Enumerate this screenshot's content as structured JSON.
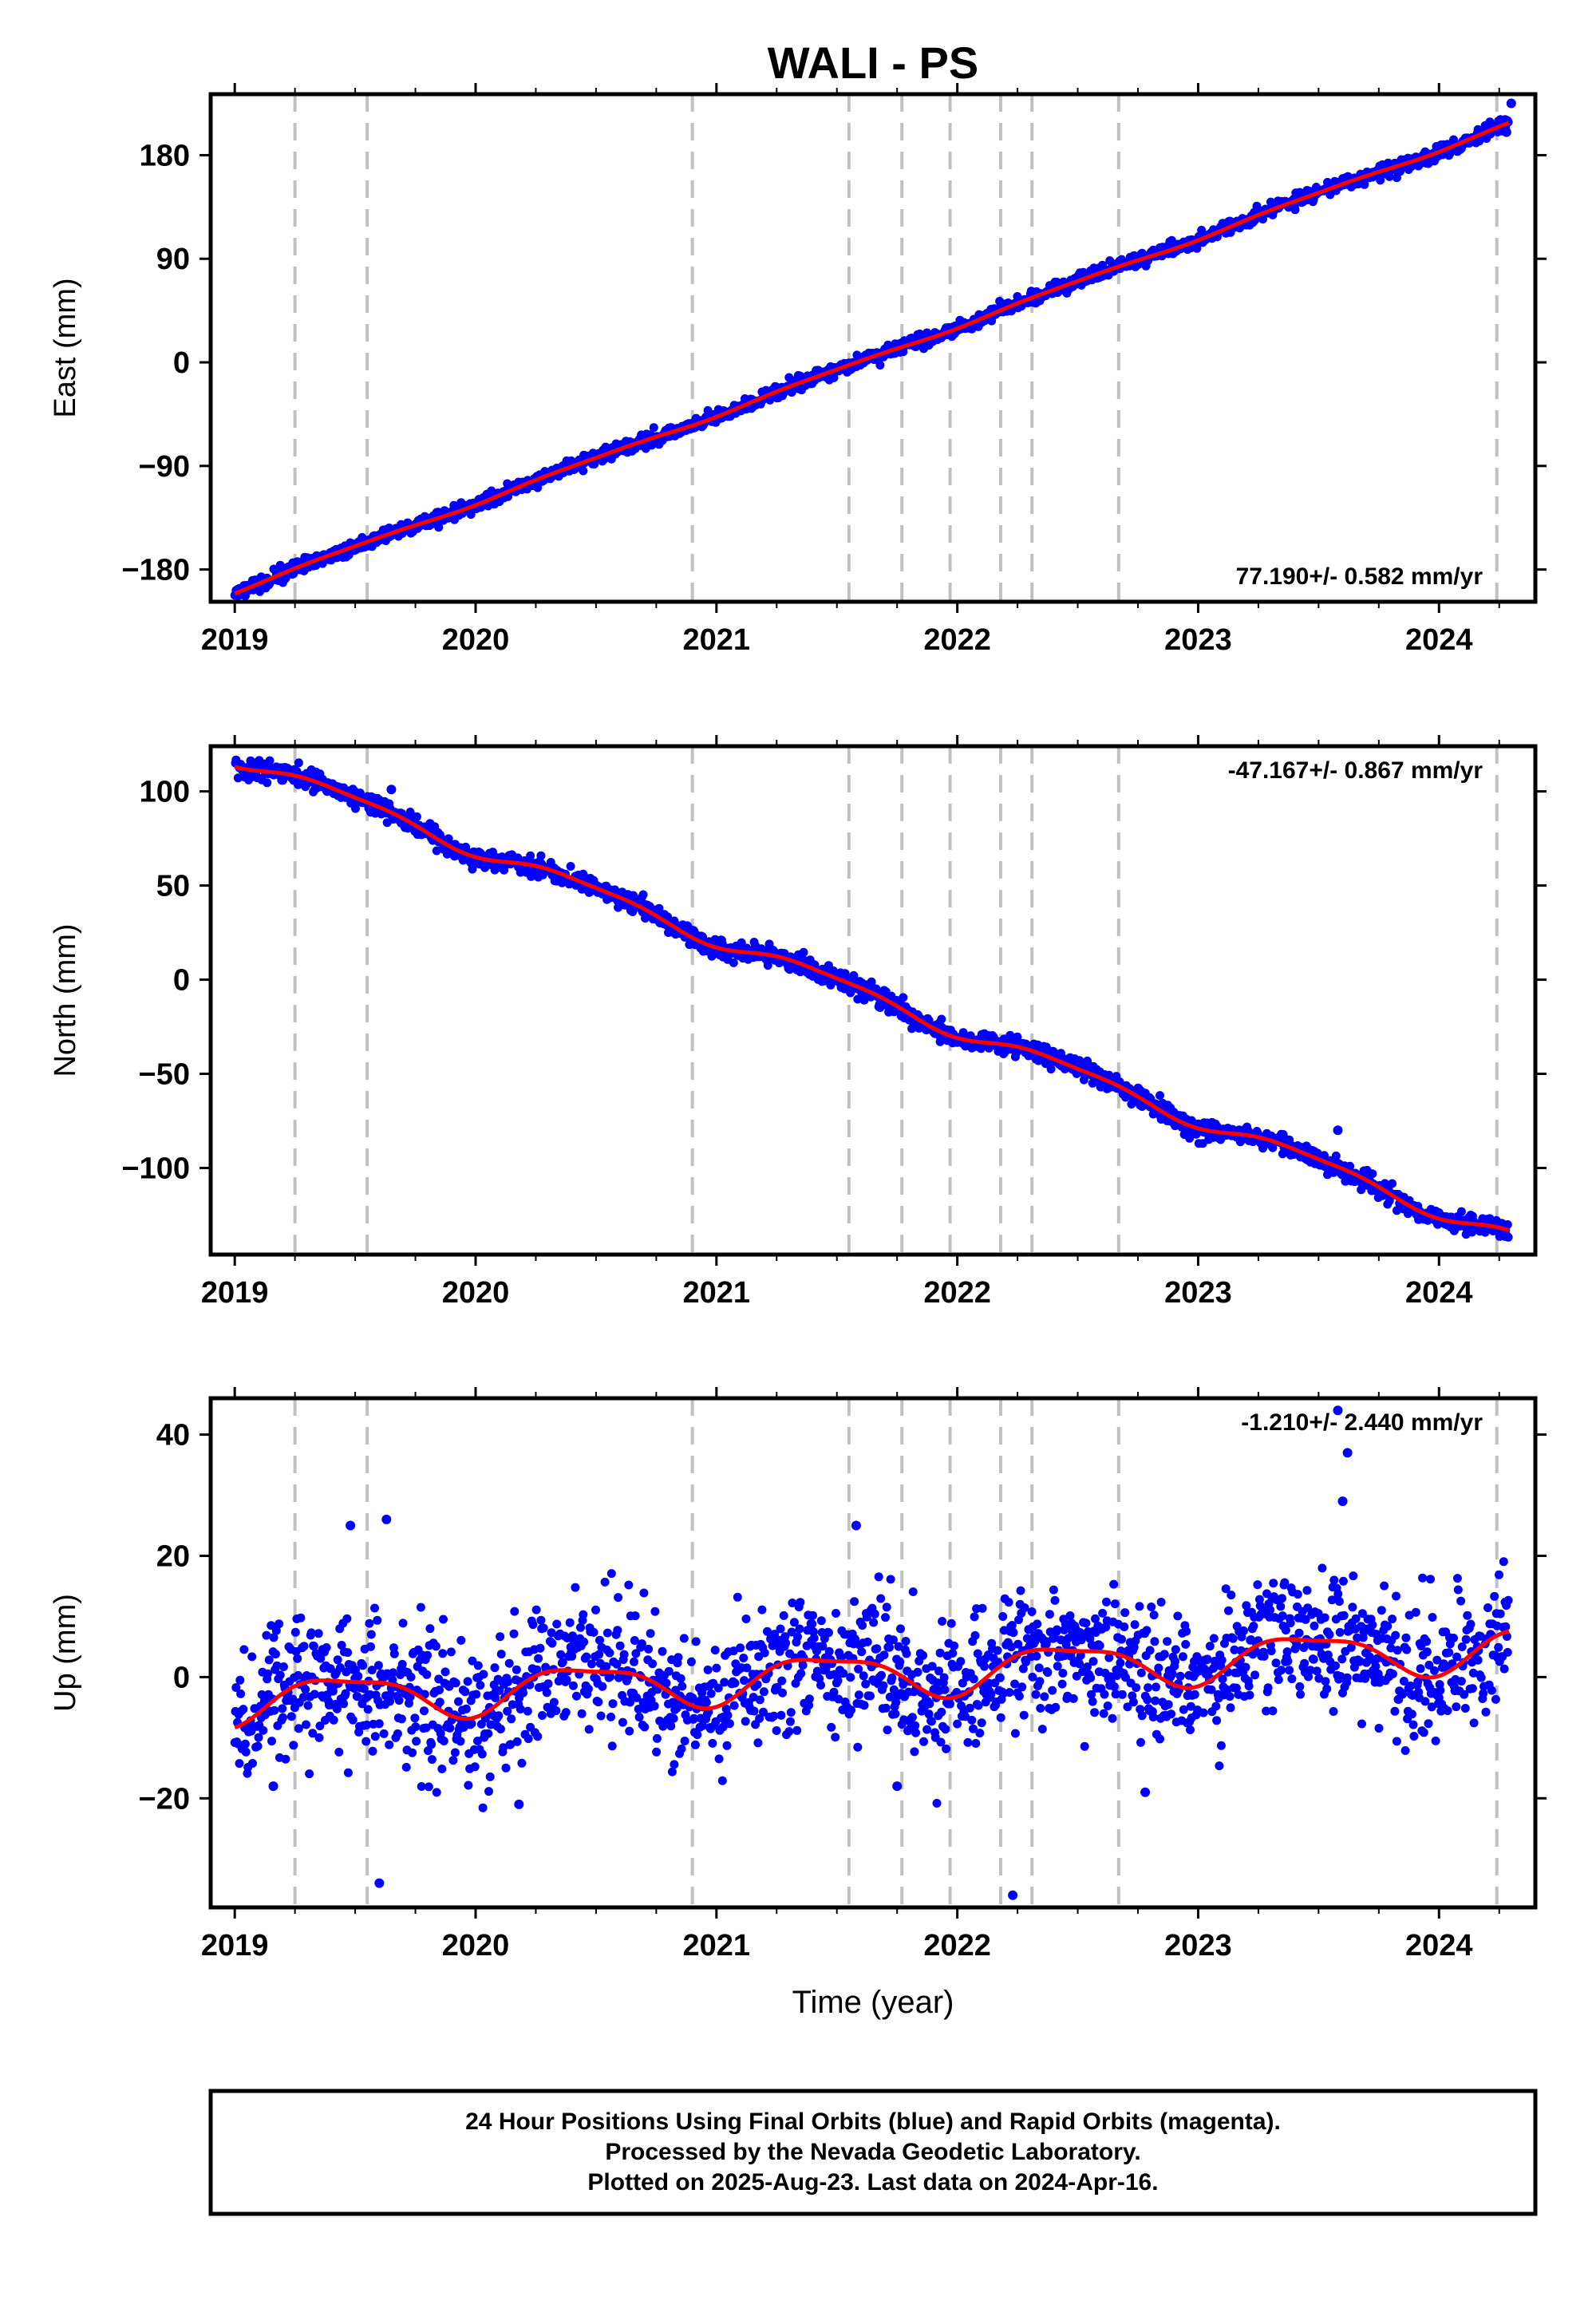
{
  "figure": {
    "title": "WALI - PS",
    "xlabel": "Time (year)",
    "footer": [
      "24 Hour Positions Using Final Orbits (blue) and Rapid Orbits (magenta).",
      "Processed by the Nevada Geodetic Laboratory.",
      "Plotted on 2025-Aug-23. Last data on 2024-Apr-16."
    ]
  },
  "colors": {
    "points": "#0000ff",
    "model": "#ff0000",
    "events": "#c0c0c0",
    "frame": "#000000"
  },
  "chart_data": [
    {
      "type": "scatter",
      "name": "east",
      "ylabel": "East (mm)",
      "rate_label": "77.190+/- 0.582 mm/yr",
      "rate_placement": "bottom-right",
      "xlim": [
        2018.9,
        2024.4
      ],
      "ylim": [
        -208,
        233
      ],
      "xticks": [
        "2019",
        "2020",
        "2021",
        "2022",
        "2023",
        "2024"
      ],
      "yticks": [
        "-180",
        "-90",
        "0",
        "90",
        "180"
      ],
      "start": [
        2019.0,
        -199
      ],
      "end": [
        2024.29,
        207
      ],
      "slope": 77.19,
      "noise": 3,
      "seasonal": 1.5,
      "extremes": [
        [
          2024.3,
          225
        ],
        [
          2024.28,
          200
        ]
      ],
      "event_lines": [
        2019.25,
        2019.55,
        2020.9,
        2021.55,
        2021.77,
        2021.97,
        2022.18,
        2022.31,
        2022.67,
        2024.24
      ]
    },
    {
      "type": "scatter",
      "name": "north",
      "ylabel": "North (mm)",
      "rate_label": "-47.167+/- 0.867 mm/yr",
      "rate_placement": "top-right",
      "xlim": [
        2018.9,
        2024.4
      ],
      "ylim": [
        -146,
        124
      ],
      "xticks": [
        "2019",
        "2020",
        "2021",
        "2022",
        "2023",
        "2024"
      ],
      "yticks": [
        "-100",
        "-50",
        "0",
        "50",
        "100"
      ],
      "start": [
        2019.0,
        118
      ],
      "end": [
        2024.29,
        -136
      ],
      "slope": -47.167,
      "noise": 2.5,
      "seasonal": 4,
      "extremes": [
        [
          2019.65,
          101
        ],
        [
          2023.58,
          -80
        ],
        [
          2020.85,
          25
        ]
      ],
      "event_lines": [
        2019.25,
        2019.55,
        2020.9,
        2021.55,
        2021.77,
        2021.97,
        2022.18,
        2022.31,
        2022.67,
        2024.24
      ]
    },
    {
      "type": "scatter",
      "name": "up",
      "ylabel": "Up (mm)",
      "rate_label": "-1.210+/- 2.440 mm/yr",
      "rate_placement": "top-right",
      "xlim": [
        2018.9,
        2024.4
      ],
      "ylim": [
        -38,
        46
      ],
      "xticks": [
        "2019",
        "2020",
        "2021",
        "2022",
        "2023",
        "2024"
      ],
      "yticks": [
        "-20",
        "0",
        "20",
        "40"
      ],
      "start": [
        2019.0,
        -4
      ],
      "end": [
        2024.29,
        5
      ],
      "slope": -1.21,
      "noise": 5.5,
      "seasonal": 3.5,
      "extremes": [
        [
          2023.58,
          44
        ],
        [
          2023.62,
          37
        ],
        [
          2023.6,
          29
        ],
        [
          2019.6,
          -34
        ],
        [
          2022.23,
          -36
        ],
        [
          2019.63,
          26
        ],
        [
          2019.48,
          25
        ],
        [
          2021.58,
          25
        ],
        [
          2020.18,
          -21
        ],
        [
          2022.78,
          -19
        ],
        [
          2019.16,
          -18
        ],
        [
          2021.75,
          -18
        ]
      ],
      "event_lines": [
        2019.25,
        2019.55,
        2020.9,
        2021.55,
        2021.77,
        2021.97,
        2022.18,
        2022.31,
        2022.67,
        2024.24
      ]
    }
  ]
}
